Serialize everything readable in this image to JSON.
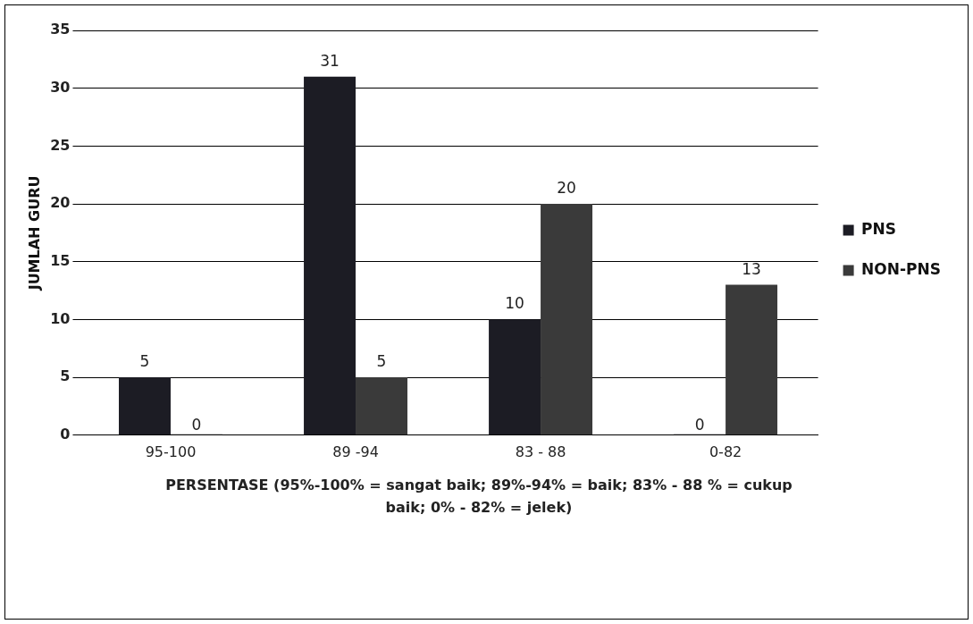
{
  "chart_data": {
    "type": "bar",
    "categories": [
      "95-100",
      "89 -94",
      "83 - 88",
      "0-82"
    ],
    "series": [
      {
        "name": "PNS",
        "color": "#1c1c24",
        "values": [
          5,
          31,
          10,
          0
        ]
      },
      {
        "name": "NON-PNS",
        "color": "#3a3a3a",
        "values": [
          0,
          5,
          20,
          13
        ]
      }
    ],
    "ylabel": "JUMLAH GURU",
    "xlabel": "PERSENTASE (95%-100% = sangat baik; 89%-94% = baik; 83% - 88 % = cukup baik; 0% - 82% = jelek)",
    "ylim": [
      0,
      35
    ],
    "yticks": [
      0,
      5,
      10,
      15,
      20,
      25,
      30,
      35
    ],
    "grid": "y",
    "legend": "right",
    "data_labels": true
  }
}
